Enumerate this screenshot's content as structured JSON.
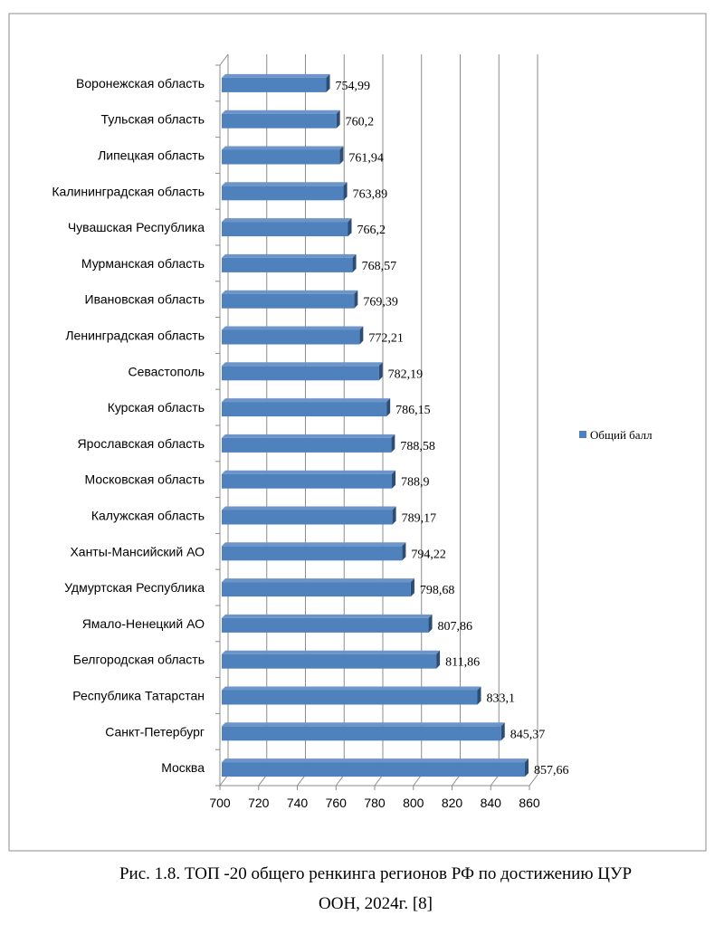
{
  "chart_data": {
    "type": "bar",
    "orientation": "horizontal",
    "style": "3d",
    "categories": [
      "Воронежская область",
      "Тульская область",
      "Липецкая область",
      "Калининградская область",
      "Чувашская Республика",
      "Мурманская область",
      "Ивановская область",
      "Ленинградская область",
      "Севастополь",
      "Курская область",
      "Ярославская область",
      "Московская область",
      "Калужская область",
      "Ханты-Мансийский АО",
      "Удмуртская Республика",
      "Ямало-Ненецкий АО",
      "Белгородская область",
      "Республика Татарстан",
      "Санкт-Петербург",
      "Москва"
    ],
    "series": [
      {
        "name": "Общий балл",
        "values": [
          754.99,
          760.2,
          761.94,
          763.89,
          766.2,
          768.57,
          769.39,
          772.21,
          782.19,
          786.15,
          788.58,
          788.9,
          789.17,
          794.22,
          798.68,
          807.86,
          811.86,
          833.1,
          845.37,
          857.66
        ],
        "labels": [
          "754,99",
          "760,2",
          "761,94",
          "763,89",
          "766,2",
          "768,57",
          "769,39",
          "772,21",
          "782,19",
          "786,15",
          "788,58",
          "788,9",
          "789,17",
          "794,22",
          "798,68",
          "807,86",
          "811,86",
          "833,1",
          "845,37",
          "857,66"
        ],
        "color": "#4f81bd"
      }
    ],
    "xlim": [
      700,
      860
    ],
    "xticks": [
      "700",
      "720",
      "740",
      "760",
      "780",
      "800",
      "820",
      "840",
      "860"
    ],
    "grid": true,
    "legend": "right"
  },
  "caption": {
    "line1": "Рис. 1.8. ТОП -20 общего ренкинга регионов РФ по достижению ЦУР",
    "line2": "ООН, 2024г. [8]"
  }
}
